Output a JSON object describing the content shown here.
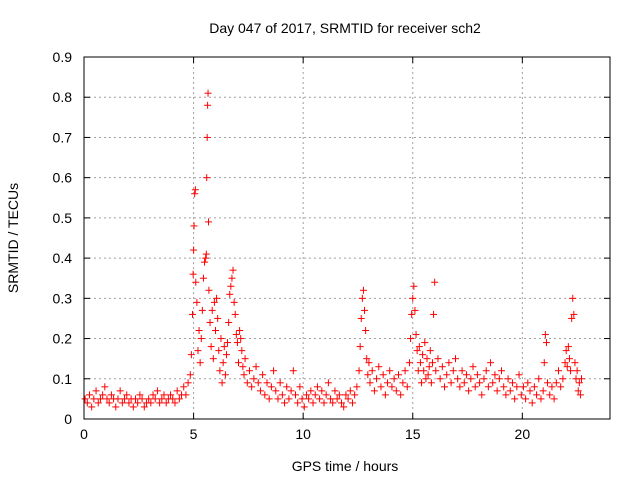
{
  "chart_data": {
    "type": "scatter",
    "title": "Day 047 of 2017, SRMTID for receiver sch2",
    "xlabel": "GPS time / hours",
    "ylabel": "SRMTID / TECUs",
    "xlim": [
      0,
      24
    ],
    "ylim": [
      0,
      0.9
    ],
    "xticks": [
      0,
      5,
      10,
      15,
      20
    ],
    "xtick_labels": [
      "0",
      "5",
      "10",
      "15",
      "20"
    ],
    "yticks": [
      0,
      0.1,
      0.2,
      0.3,
      0.4,
      0.5,
      0.6,
      0.7,
      0.8,
      0.9
    ],
    "ytick_labels": [
      "0",
      "0.1",
      "0.2",
      "0.3",
      "0.4",
      "0.5",
      "0.6",
      "0.7",
      "0.8",
      "0.9"
    ],
    "grid": true,
    "marker": "+",
    "color": "#ff0000",
    "series": [
      {
        "name": "SRMTID",
        "points": [
          [
            0.05,
            0.05
          ],
          [
            0.15,
            0.04
          ],
          [
            0.25,
            0.06
          ],
          [
            0.35,
            0.03
          ],
          [
            0.45,
            0.05
          ],
          [
            0.55,
            0.07
          ],
          [
            0.65,
            0.04
          ],
          [
            0.75,
            0.05
          ],
          [
            0.85,
            0.06
          ],
          [
            0.95,
            0.08
          ],
          [
            1.05,
            0.05
          ],
          [
            1.15,
            0.04
          ],
          [
            1.25,
            0.06
          ],
          [
            1.35,
            0.05
          ],
          [
            1.45,
            0.03
          ],
          [
            1.55,
            0.05
          ],
          [
            1.65,
            0.07
          ],
          [
            1.75,
            0.04
          ],
          [
            1.85,
            0.05
          ],
          [
            1.95,
            0.06
          ],
          [
            2.05,
            0.04
          ],
          [
            2.15,
            0.05
          ],
          [
            2.25,
            0.03
          ],
          [
            2.35,
            0.05
          ],
          [
            2.45,
            0.04
          ],
          [
            2.55,
            0.06
          ],
          [
            2.65,
            0.05
          ],
          [
            2.75,
            0.03
          ],
          [
            2.85,
            0.04
          ],
          [
            2.95,
            0.05
          ],
          [
            3.05,
            0.04
          ],
          [
            3.15,
            0.06
          ],
          [
            3.25,
            0.05
          ],
          [
            3.35,
            0.07
          ],
          [
            3.45,
            0.04
          ],
          [
            3.55,
            0.05
          ],
          [
            3.65,
            0.06
          ],
          [
            3.75,
            0.04
          ],
          [
            3.85,
            0.05
          ],
          [
            3.95,
            0.06
          ],
          [
            4.05,
            0.05
          ],
          [
            4.15,
            0.04
          ],
          [
            4.25,
            0.07
          ],
          [
            4.35,
            0.05
          ],
          [
            4.45,
            0.06
          ],
          [
            4.55,
            0.08
          ],
          [
            4.65,
            0.06
          ],
          [
            4.75,
            0.09
          ],
          [
            4.85,
            0.11
          ],
          [
            4.9,
            0.16
          ],
          [
            4.95,
            0.26
          ],
          [
            4.98,
            0.36
          ],
          [
            5.0,
            0.42
          ],
          [
            5.02,
            0.48
          ],
          [
            5.05,
            0.56
          ],
          [
            5.08,
            0.57
          ],
          [
            5.1,
            0.34
          ],
          [
            5.15,
            0.29
          ],
          [
            5.2,
            0.17
          ],
          [
            5.25,
            0.22
          ],
          [
            5.3,
            0.14
          ],
          [
            5.35,
            0.2
          ],
          [
            5.4,
            0.27
          ],
          [
            5.45,
            0.35
          ],
          [
            5.5,
            0.39
          ],
          [
            5.55,
            0.4
          ],
          [
            5.58,
            0.41
          ],
          [
            5.6,
            0.6
          ],
          [
            5.62,
            0.7
          ],
          [
            5.64,
            0.78
          ],
          [
            5.66,
            0.81
          ],
          [
            5.68,
            0.49
          ],
          [
            5.7,
            0.32
          ],
          [
            5.75,
            0.24
          ],
          [
            5.8,
            0.18
          ],
          [
            5.85,
            0.27
          ],
          [
            5.9,
            0.15
          ],
          [
            5.95,
            0.29
          ],
          [
            6.0,
            0.22
          ],
          [
            6.05,
            0.3
          ],
          [
            6.1,
            0.25
          ],
          [
            6.15,
            0.17
          ],
          [
            6.2,
            0.12
          ],
          [
            6.25,
            0.2
          ],
          [
            6.3,
            0.09
          ],
          [
            6.35,
            0.14
          ],
          [
            6.4,
            0.18
          ],
          [
            6.45,
            0.11
          ],
          [
            6.5,
            0.16
          ],
          [
            6.55,
            0.19
          ],
          [
            6.6,
            0.24
          ],
          [
            6.65,
            0.31
          ],
          [
            6.7,
            0.33
          ],
          [
            6.75,
            0.35
          ],
          [
            6.8,
            0.37
          ],
          [
            6.85,
            0.29
          ],
          [
            6.9,
            0.26
          ],
          [
            6.95,
            0.21
          ],
          [
            7.0,
            0.19
          ],
          [
            7.05,
            0.14
          ],
          [
            7.1,
            0.22
          ],
          [
            7.15,
            0.2
          ],
          [
            7.2,
            0.17
          ],
          [
            7.25,
            0.13
          ],
          [
            7.3,
            0.11
          ],
          [
            7.35,
            0.15
          ],
          [
            7.45,
            0.09
          ],
          [
            7.55,
            0.12
          ],
          [
            7.65,
            0.08
          ],
          [
            7.75,
            0.1
          ],
          [
            7.85,
            0.13
          ],
          [
            7.95,
            0.09
          ],
          [
            8.05,
            0.07
          ],
          [
            8.15,
            0.11
          ],
          [
            8.25,
            0.06
          ],
          [
            8.35,
            0.09
          ],
          [
            8.45,
            0.05
          ],
          [
            8.55,
            0.08
          ],
          [
            8.65,
            0.12
          ],
          [
            8.75,
            0.07
          ],
          [
            8.85,
            0.05
          ],
          [
            8.95,
            0.09
          ],
          [
            9.05,
            0.06
          ],
          [
            9.15,
            0.04
          ],
          [
            9.25,
            0.08
          ],
          [
            9.35,
            0.05
          ],
          [
            9.45,
            0.07
          ],
          [
            9.55,
            0.12
          ],
          [
            9.65,
            0.06
          ],
          [
            9.75,
            0.04
          ],
          [
            9.85,
            0.08
          ],
          [
            9.95,
            0.05
          ],
          [
            10.05,
            0.03
          ],
          [
            10.15,
            0.06
          ],
          [
            10.25,
            0.05
          ],
          [
            10.35,
            0.07
          ],
          [
            10.45,
            0.04
          ],
          [
            10.55,
            0.06
          ],
          [
            10.65,
            0.08
          ],
          [
            10.75,
            0.05
          ],
          [
            10.85,
            0.07
          ],
          [
            10.95,
            0.04
          ],
          [
            11.05,
            0.06
          ],
          [
            11.15,
            0.09
          ],
          [
            11.25,
            0.05
          ],
          [
            11.35,
            0.04
          ],
          [
            11.45,
            0.07
          ],
          [
            11.55,
            0.05
          ],
          [
            11.65,
            0.06
          ],
          [
            11.75,
            0.04
          ],
          [
            11.85,
            0.03
          ],
          [
            11.95,
            0.06
          ],
          [
            12.05,
            0.05
          ],
          [
            12.15,
            0.07
          ],
          [
            12.25,
            0.04
          ],
          [
            12.35,
            0.06
          ],
          [
            12.45,
            0.08
          ],
          [
            12.55,
            0.12
          ],
          [
            12.6,
            0.18
          ],
          [
            12.65,
            0.25
          ],
          [
            12.7,
            0.3
          ],
          [
            12.75,
            0.32
          ],
          [
            12.8,
            0.27
          ],
          [
            12.85,
            0.22
          ],
          [
            12.9,
            0.15
          ],
          [
            12.95,
            0.11
          ],
          [
            13.0,
            0.14
          ],
          [
            13.05,
            0.09
          ],
          [
            13.15,
            0.12
          ],
          [
            13.25,
            0.07
          ],
          [
            13.35,
            0.1
          ],
          [
            13.45,
            0.13
          ],
          [
            13.55,
            0.08
          ],
          [
            13.65,
            0.11
          ],
          [
            13.75,
            0.06
          ],
          [
            13.85,
            0.09
          ],
          [
            13.95,
            0.12
          ],
          [
            14.05,
            0.08
          ],
          [
            14.15,
            0.1
          ],
          [
            14.25,
            0.07
          ],
          [
            14.35,
            0.11
          ],
          [
            14.45,
            0.06
          ],
          [
            14.55,
            0.09
          ],
          [
            14.65,
            0.12
          ],
          [
            14.75,
            0.08
          ],
          [
            14.85,
            0.14
          ],
          [
            14.9,
            0.2
          ],
          [
            14.95,
            0.26
          ],
          [
            15.0,
            0.3
          ],
          [
            15.05,
            0.33
          ],
          [
            15.1,
            0.27
          ],
          [
            15.15,
            0.21
          ],
          [
            15.2,
            0.17
          ],
          [
            15.25,
            0.12
          ],
          [
            15.3,
            0.18
          ],
          [
            15.35,
            0.14
          ],
          [
            15.4,
            0.09
          ],
          [
            15.45,
            0.16
          ],
          [
            15.5,
            0.12
          ],
          [
            15.55,
            0.19
          ],
          [
            15.6,
            0.1
          ],
          [
            15.65,
            0.15
          ],
          [
            15.7,
            0.11
          ],
          [
            15.75,
            0.13
          ],
          [
            15.8,
            0.17
          ],
          [
            15.85,
            0.09
          ],
          [
            15.9,
            0.14
          ],
          [
            15.95,
            0.26
          ],
          [
            16.0,
            0.34
          ],
          [
            16.05,
            0.12
          ],
          [
            16.15,
            0.15
          ],
          [
            16.25,
            0.1
          ],
          [
            16.35,
            0.13
          ],
          [
            16.45,
            0.08
          ],
          [
            16.55,
            0.11
          ],
          [
            16.65,
            0.14
          ],
          [
            16.75,
            0.09
          ],
          [
            16.85,
            0.12
          ],
          [
            16.95,
            0.15
          ],
          [
            17.05,
            0.1
          ],
          [
            17.15,
            0.08
          ],
          [
            17.25,
            0.12
          ],
          [
            17.35,
            0.09
          ],
          [
            17.45,
            0.11
          ],
          [
            17.55,
            0.07
          ],
          [
            17.65,
            0.1
          ],
          [
            17.75,
            0.13
          ],
          [
            17.85,
            0.08
          ],
          [
            17.95,
            0.11
          ],
          [
            18.05,
            0.09
          ],
          [
            18.15,
            0.06
          ],
          [
            18.25,
            0.1
          ],
          [
            18.35,
            0.12
          ],
          [
            18.45,
            0.08
          ],
          [
            18.55,
            0.14
          ],
          [
            18.65,
            0.09
          ],
          [
            18.75,
            0.11
          ],
          [
            18.85,
            0.07
          ],
          [
            18.95,
            0.1
          ],
          [
            19.05,
            0.12
          ],
          [
            19.15,
            0.08
          ],
          [
            19.25,
            0.06
          ],
          [
            19.35,
            0.1
          ],
          [
            19.45,
            0.07
          ],
          [
            19.55,
            0.09
          ],
          [
            19.65,
            0.05
          ],
          [
            19.75,
            0.08
          ],
          [
            19.85,
            0.11
          ],
          [
            19.95,
            0.06
          ],
          [
            20.05,
            0.08
          ],
          [
            20.15,
            0.05
          ],
          [
            20.25,
            0.09
          ],
          [
            20.35,
            0.07
          ],
          [
            20.45,
            0.04
          ],
          [
            20.55,
            0.08
          ],
          [
            20.65,
            0.06
          ],
          [
            20.75,
            0.1
          ],
          [
            20.85,
            0.05
          ],
          [
            20.95,
            0.07
          ],
          [
            21.0,
            0.14
          ],
          [
            21.05,
            0.21
          ],
          [
            21.1,
            0.19
          ],
          [
            21.15,
            0.09
          ],
          [
            21.25,
            0.06
          ],
          [
            21.35,
            0.08
          ],
          [
            21.45,
            0.05
          ],
          [
            21.55,
            0.09
          ],
          [
            21.65,
            0.12
          ],
          [
            21.75,
            0.08
          ],
          [
            21.85,
            0.1
          ],
          [
            21.95,
            0.14
          ],
          [
            22.0,
            0.17
          ],
          [
            22.05,
            0.13
          ],
          [
            22.1,
            0.18
          ],
          [
            22.15,
            0.15
          ],
          [
            22.2,
            0.12
          ],
          [
            22.25,
            0.25
          ],
          [
            22.3,
            0.3
          ],
          [
            22.35,
            0.26
          ],
          [
            22.4,
            0.14
          ],
          [
            22.45,
            0.1
          ],
          [
            22.5,
            0.12
          ],
          [
            22.55,
            0.07
          ],
          [
            22.6,
            0.09
          ],
          [
            22.65,
            0.06
          ],
          [
            22.7,
            0.1
          ]
        ]
      }
    ]
  }
}
